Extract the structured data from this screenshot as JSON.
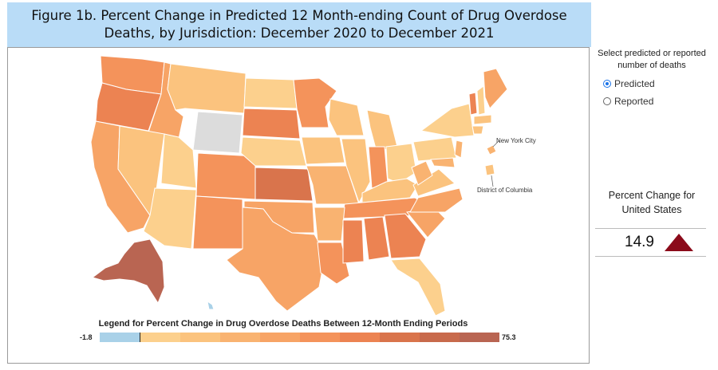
{
  "title": "Figure 1b. Percent Change in Predicted 12 Month-ending Count of Drug Overdose Deaths, by Jurisdiction: December 2020 to December 2021",
  "map": {
    "callouts": {
      "nyc": "New York City",
      "dc": "District of Columbia"
    },
    "legend": {
      "title": "Legend for Percent Change in Drug Overdose Deaths Between 12-Month Ending Periods",
      "min": "-1.8",
      "max": "75.3",
      "colors": [
        "#a9d1e8",
        "#fcd08d",
        "#fbc37e",
        "#f9b371",
        "#f7a466",
        "#f4935b",
        "#ec8352",
        "#d9744c",
        "#c86a4c",
        "#b96552"
      ]
    },
    "no_data_color": "#dcdcdc"
  },
  "controls": {
    "prompt": "Select predicted or reported number of deaths",
    "options": [
      {
        "label": "Predicted",
        "selected": true
      },
      {
        "label": "Reported",
        "selected": false
      }
    ]
  },
  "us_total": {
    "label": "Percent Change for United States",
    "value": "14.9",
    "trend_color": "#8b0a1a"
  }
}
